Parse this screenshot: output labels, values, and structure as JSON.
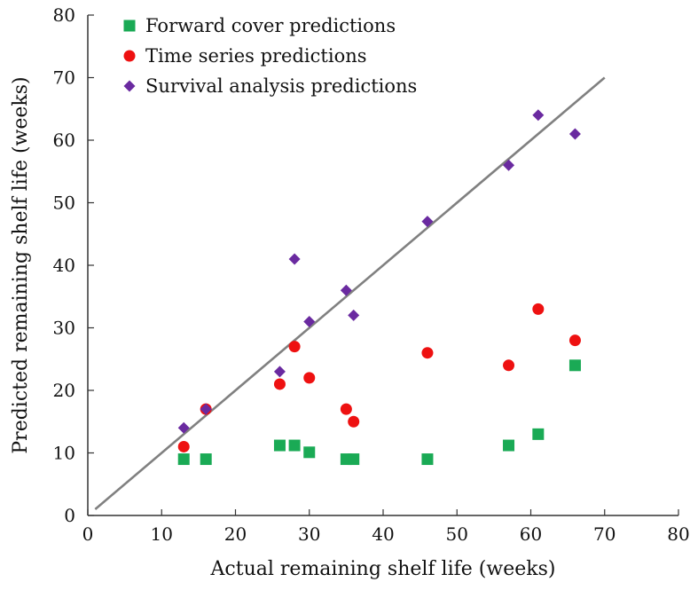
{
  "chart_data": {
    "type": "scatter",
    "title": "",
    "xlabel": "Actual remaining shelf life (weeks)",
    "ylabel": "Predicted remaining shelf life (weeks)",
    "xlim": [
      0,
      80
    ],
    "ylim": [
      0,
      80
    ],
    "xticks": [
      "0",
      "10",
      "20",
      "30",
      "40",
      "50",
      "60",
      "70",
      "80"
    ],
    "yticks": [
      "0",
      "10",
      "20",
      "30",
      "40",
      "50",
      "60",
      "70",
      "80"
    ],
    "grid": false,
    "legend_position": "top-left",
    "series": [
      {
        "name": "Forward cover predictions",
        "marker": "square",
        "color": "#1aaa55",
        "points": [
          {
            "x": 13,
            "y": 9
          },
          {
            "x": 16,
            "y": 9
          },
          {
            "x": 26,
            "y": 11.2
          },
          {
            "x": 28,
            "y": 11.2
          },
          {
            "x": 30,
            "y": 10.1
          },
          {
            "x": 35,
            "y": 9
          },
          {
            "x": 36,
            "y": 9
          },
          {
            "x": 46,
            "y": 9
          },
          {
            "x": 57,
            "y": 11.2
          },
          {
            "x": 61,
            "y": 13
          },
          {
            "x": 66,
            "y": 24
          }
        ]
      },
      {
        "name": "Time series predictions",
        "marker": "circle",
        "color": "#ee1111",
        "points": [
          {
            "x": 13,
            "y": 11
          },
          {
            "x": 16,
            "y": 17
          },
          {
            "x": 26,
            "y": 21
          },
          {
            "x": 28,
            "y": 27
          },
          {
            "x": 30,
            "y": 22
          },
          {
            "x": 35,
            "y": 17
          },
          {
            "x": 36,
            "y": 15
          },
          {
            "x": 46,
            "y": 26
          },
          {
            "x": 57,
            "y": 24
          },
          {
            "x": 61,
            "y": 33
          },
          {
            "x": 66,
            "y": 28
          }
        ]
      },
      {
        "name": "Survival analysis predictions",
        "marker": "diamond",
        "color": "#6a2aa0",
        "points": [
          {
            "x": 13,
            "y": 14
          },
          {
            "x": 16,
            "y": 17
          },
          {
            "x": 26,
            "y": 23
          },
          {
            "x": 28,
            "y": 41
          },
          {
            "x": 30,
            "y": 31
          },
          {
            "x": 35,
            "y": 36
          },
          {
            "x": 36,
            "y": 32
          },
          {
            "x": 46,
            "y": 47
          },
          {
            "x": 57,
            "y": 56
          },
          {
            "x": 61,
            "y": 64
          },
          {
            "x": 66,
            "y": 61
          }
        ]
      }
    ],
    "reference_line": {
      "color": "#808080",
      "from": {
        "x": 1,
        "y": 1
      },
      "to": {
        "x": 70,
        "y": 70
      }
    }
  }
}
